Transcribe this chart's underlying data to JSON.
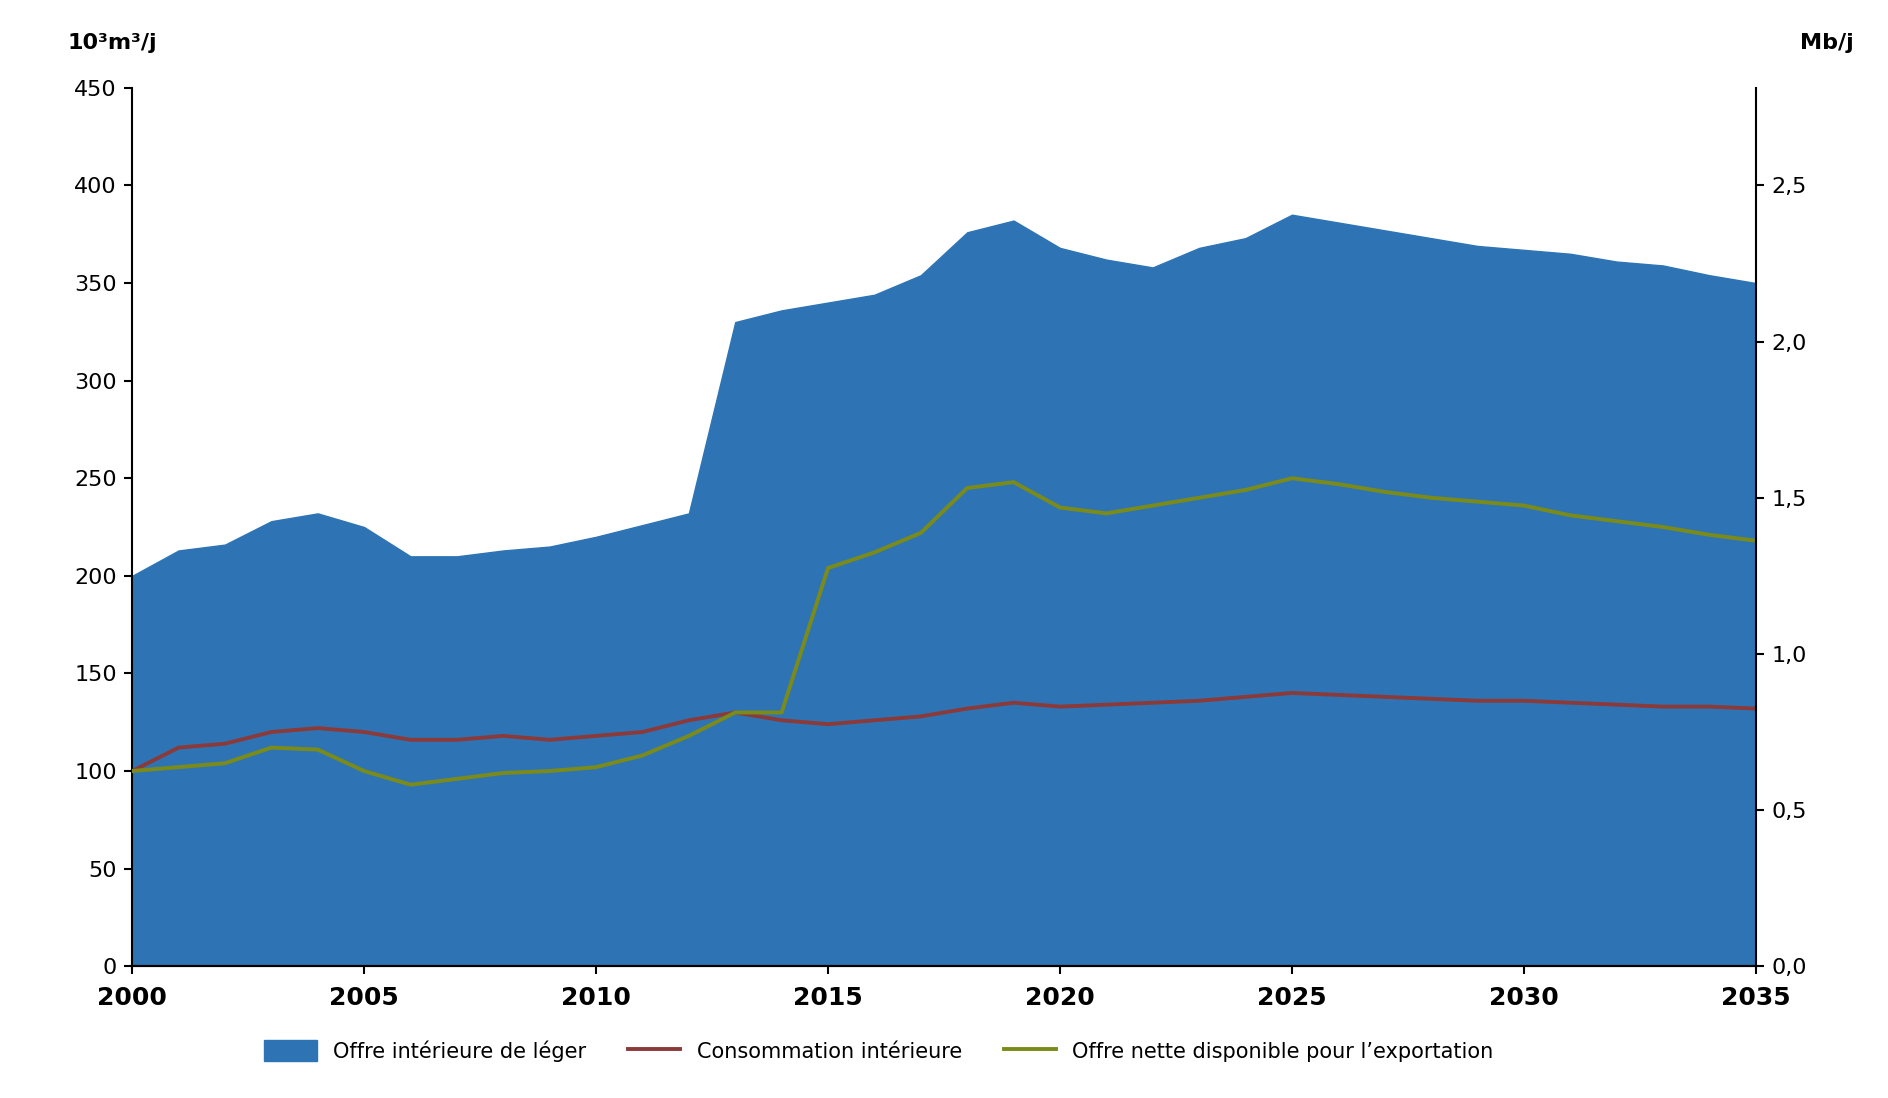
{
  "years": [
    2000,
    2001,
    2002,
    2003,
    2004,
    2005,
    2006,
    2007,
    2008,
    2009,
    2010,
    2011,
    2012,
    2013,
    2014,
    2015,
    2016,
    2017,
    2018,
    2019,
    2020,
    2021,
    2022,
    2023,
    2024,
    2025,
    2026,
    2027,
    2028,
    2029,
    2030,
    2031,
    2032,
    2033,
    2034,
    2035
  ],
  "supply": [
    200,
    213,
    216,
    228,
    232,
    225,
    210,
    210,
    213,
    215,
    220,
    226,
    232,
    330,
    336,
    340,
    344,
    354,
    376,
    382,
    368,
    362,
    358,
    368,
    373,
    385,
    381,
    377,
    373,
    369,
    367,
    365,
    361,
    359,
    354,
    350
  ],
  "consumption": [
    100,
    112,
    114,
    120,
    122,
    120,
    116,
    116,
    118,
    116,
    118,
    120,
    126,
    130,
    126,
    124,
    126,
    128,
    132,
    135,
    133,
    134,
    135,
    136,
    138,
    140,
    139,
    138,
    137,
    136,
    136,
    135,
    134,
    133,
    133,
    132
  ],
  "net_export": [
    100,
    102,
    104,
    112,
    111,
    100,
    93,
    96,
    99,
    100,
    102,
    108,
    118,
    130,
    130,
    204,
    212,
    222,
    245,
    248,
    235,
    232,
    236,
    240,
    244,
    250,
    247,
    243,
    240,
    238,
    236,
    231,
    228,
    225,
    221,
    218
  ],
  "supply_color": "#2E74B5",
  "consumption_color": "#8B3A3A",
  "net_export_color": "#7B8B1A",
  "background_color": "#ffffff",
  "ylim_left": [
    0,
    450
  ],
  "ylim_right": [
    0,
    2.8125
  ],
  "ylabel_left": "10³m³/j",
  "ylabel_right": "Mb/j",
  "yticks_left": [
    0,
    50,
    100,
    150,
    200,
    250,
    300,
    350,
    400,
    450
  ],
  "yticks_right": [
    0.0,
    0.5,
    1.0,
    1.5,
    2.0,
    2.5
  ],
  "legend_supply": "Offre intérieure de léger",
  "legend_consumption": "Consommation intérieure",
  "legend_net_export": "Offre nette disponible pour l’exportation",
  "xticks": [
    2000,
    2005,
    2010,
    2015,
    2020,
    2025,
    2030,
    2035
  ]
}
